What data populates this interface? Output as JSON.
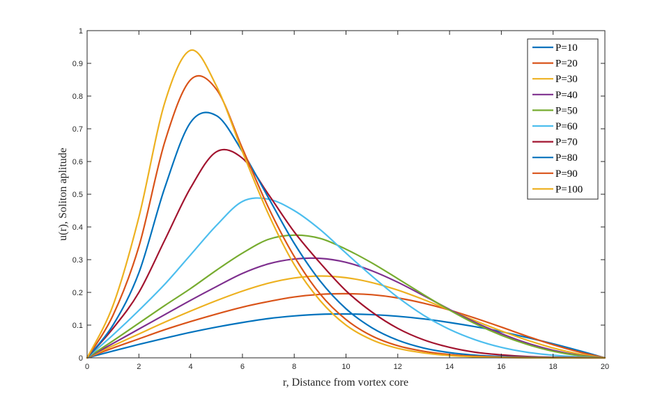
{
  "chart_data": {
    "type": "line",
    "title": "",
    "xlabel": "r, Distance from vortex core",
    "ylabel": "u(r), Soliton aplitude",
    "xlim": [
      0,
      20
    ],
    "ylim": [
      0,
      1
    ],
    "xticks": [
      0,
      2,
      4,
      6,
      8,
      10,
      12,
      14,
      16,
      18,
      20
    ],
    "yticks": [
      0,
      0.1,
      0.2,
      0.3,
      0.4,
      0.5,
      0.6,
      0.7,
      0.8,
      0.9,
      1
    ],
    "xtick_labels": [
      "0",
      "2",
      "4",
      "6",
      "8",
      "10",
      "12",
      "14",
      "16",
      "18",
      "20"
    ],
    "ytick_labels": [
      "0",
      "0.1",
      "0.2",
      "0.3",
      "0.4",
      "0.5",
      "0.6",
      "0.7",
      "0.8",
      "0.9",
      "1"
    ],
    "grid": false,
    "legend_position": "top-right",
    "x": [
      0,
      1,
      2,
      3,
      4,
      5,
      6,
      7,
      8,
      9,
      10,
      11,
      12,
      13,
      14,
      15,
      16,
      17,
      18,
      19,
      20
    ],
    "series": [
      {
        "name": "P=10",
        "color": "#0072BD",
        "values": [
          0,
          0.021,
          0.041,
          0.06,
          0.078,
          0.094,
          0.108,
          0.12,
          0.128,
          0.133,
          0.134,
          0.132,
          0.127,
          0.119,
          0.108,
          0.095,
          0.08,
          0.062,
          0.043,
          0.022,
          0
        ]
      },
      {
        "name": "P=20",
        "color": "#D95319",
        "values": [
          0,
          0.03,
          0.058,
          0.086,
          0.111,
          0.134,
          0.155,
          0.172,
          0.186,
          0.194,
          0.196,
          0.193,
          0.183,
          0.167,
          0.146,
          0.121,
          0.094,
          0.066,
          0.04,
          0.018,
          0
        ]
      },
      {
        "name": "P=30",
        "color": "#EDB120",
        "values": [
          0,
          0.037,
          0.073,
          0.109,
          0.143,
          0.175,
          0.204,
          0.228,
          0.244,
          0.25,
          0.245,
          0.23,
          0.207,
          0.178,
          0.146,
          0.113,
          0.082,
          0.054,
          0.03,
          0.012,
          0
        ]
      },
      {
        "name": "P=40",
        "color": "#7E2F8E",
        "values": [
          0,
          0.044,
          0.088,
          0.132,
          0.176,
          0.218,
          0.258,
          0.287,
          0.302,
          0.304,
          0.292,
          0.266,
          0.231,
          0.19,
          0.148,
          0.108,
          0.074,
          0.045,
          0.023,
          0.008,
          0
        ]
      },
      {
        "name": "P=50",
        "color": "#77AC30",
        "values": [
          0,
          0.052,
          0.106,
          0.16,
          0.212,
          0.268,
          0.32,
          0.362,
          0.375,
          0.365,
          0.332,
          0.29,
          0.242,
          0.193,
          0.146,
          0.104,
          0.069,
          0.041,
          0.02,
          0.007,
          0
        ]
      },
      {
        "name": "P=60",
        "color": "#4DBEEE",
        "values": [
          0,
          0.07,
          0.145,
          0.225,
          0.315,
          0.405,
          0.478,
          0.485,
          0.45,
          0.392,
          0.32,
          0.25,
          0.185,
          0.13,
          0.087,
          0.055,
          0.032,
          0.017,
          0.008,
          0.003,
          0
        ]
      },
      {
        "name": "P=70",
        "color": "#A2142F",
        "values": [
          0,
          0.09,
          0.2,
          0.36,
          0.52,
          0.63,
          0.61,
          0.5,
          0.385,
          0.29,
          0.205,
          0.14,
          0.09,
          0.055,
          0.032,
          0.017,
          0.009,
          0.004,
          0.002,
          0.001,
          0
        ]
      },
      {
        "name": "P=80",
        "color": "#0072BD",
        "values": [
          0,
          0.1,
          0.26,
          0.52,
          0.72,
          0.74,
          0.63,
          0.49,
          0.35,
          0.235,
          0.15,
          0.092,
          0.054,
          0.03,
          0.016,
          0.008,
          0.004,
          0.002,
          0.001,
          0,
          0
        ]
      },
      {
        "name": "P=90",
        "color": "#D95319",
        "values": [
          0,
          0.13,
          0.34,
          0.66,
          0.85,
          0.82,
          0.64,
          0.46,
          0.31,
          0.195,
          0.117,
          0.067,
          0.037,
          0.02,
          0.01,
          0.005,
          0.002,
          0.001,
          0,
          0,
          0
        ]
      },
      {
        "name": "P=100",
        "color": "#EDB120",
        "values": [
          0,
          0.16,
          0.43,
          0.78,
          0.94,
          0.83,
          0.63,
          0.44,
          0.285,
          0.175,
          0.1,
          0.055,
          0.029,
          0.015,
          0.007,
          0.003,
          0.001,
          0,
          0,
          0,
          0
        ]
      }
    ]
  }
}
